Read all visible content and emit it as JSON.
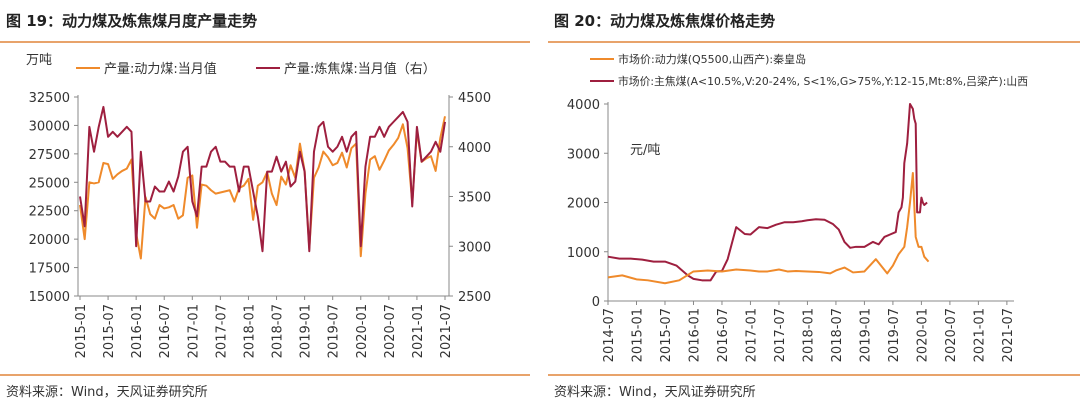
{
  "charts": [
    {
      "title": "图 19：动力煤及炼焦煤月度产量走势",
      "source": "资料来源：Wind，天风证券研究所",
      "unit_label": "万吨",
      "legend": [
        "产量:动力煤:当月值",
        "产量:炼焦煤:当月值（右）"
      ],
      "colors": [
        "#ef8a2b",
        "#9e1f3f"
      ]
    },
    {
      "title": "图 20：动力煤及炼焦煤价格走势",
      "source": "资料来源：Wind，天风证券研究所",
      "unit_label": "元/吨",
      "legend": [
        "市场价:动力煤(Q5500,山西产):秦皇岛",
        "市场价:主焦煤(A<10.5%,V:20-24%, S<1%,G>75%,Y:12-15,Mt:8%,吕梁产):山西"
      ],
      "colors": [
        "#ef8a2b",
        "#9e1f3f"
      ]
    }
  ],
  "chart_data": [
    {
      "type": "line",
      "title": "图 19：动力煤及炼焦煤月度产量走势",
      "ylabel": "万吨",
      "x_ticks": [
        "2015-01",
        "2015-07",
        "2016-01",
        "2016-07",
        "2017-01",
        "2017-07",
        "2018-01",
        "2018-07",
        "2019-01",
        "2019-07",
        "2020-01",
        "2020-07",
        "2021-01",
        "2021-07"
      ],
      "ylim_left": [
        15000,
        32500
      ],
      "yticks_left": [
        "32500",
        "30000",
        "27500",
        "25000",
        "22500",
        "20000",
        "17500",
        "15000"
      ],
      "ylim_right": [
        2500,
        4500
      ],
      "yticks_right": [
        "4500",
        "4000",
        "3500",
        "3000",
        "2500"
      ],
      "series": [
        {
          "name": "产量:动力煤:当月值",
          "axis": "left",
          "values": [
            23000,
            20000,
            25000,
            24900,
            25000,
            26700,
            26600,
            25300,
            25700,
            26000,
            26200,
            27000,
            20500,
            18300,
            23700,
            22200,
            21800,
            23000,
            22700,
            22800,
            23000,
            21800,
            22100,
            25400,
            25600,
            21000,
            24800,
            24700,
            24300,
            24000,
            24100,
            24200,
            24300,
            23300,
            24500,
            24700,
            25300,
            21700,
            24700,
            25000,
            25900,
            24000,
            23000,
            25500,
            24800,
            26500,
            25400,
            28400,
            26000,
            19200,
            25400,
            26300,
            27700,
            27200,
            26500,
            26700,
            27600,
            26300,
            28000,
            28400,
            18500,
            24000,
            27000,
            27300,
            26100,
            26900,
            27800,
            28300,
            28900,
            30100,
            28000,
            23200,
            29500,
            26800,
            27100,
            27300,
            26000,
            28900,
            30800
          ]
        },
        {
          "name": "产量:炼焦煤:当月值（右）",
          "axis": "right",
          "values": [
            3500,
            3200,
            4200,
            3950,
            4200,
            4400,
            4100,
            4150,
            4100,
            4150,
            4200,
            4150,
            3000,
            3950,
            3450,
            3450,
            3600,
            3550,
            3550,
            3650,
            3550,
            3700,
            3950,
            4000,
            3450,
            3300,
            3800,
            3800,
            3950,
            4000,
            3850,
            3850,
            3800,
            3800,
            3550,
            3800,
            3800,
            3550,
            3300,
            2950,
            3750,
            3750,
            3900,
            3750,
            3850,
            3600,
            3650,
            3950,
            3750,
            2950,
            3950,
            4200,
            4250,
            4000,
            3950,
            4000,
            4100,
            3950,
            4100,
            4150,
            3000,
            3800,
            4100,
            4100,
            4200,
            4100,
            4200,
            4250,
            4300,
            4350,
            4250,
            3400,
            4200,
            3850,
            3900,
            3950,
            4050,
            3950,
            4250
          ]
        }
      ]
    },
    {
      "type": "line",
      "title": "图 20：动力煤及炼焦煤价格走势",
      "ylabel": "元/吨",
      "x_ticks": [
        "2014-07",
        "2015-01",
        "2015-07",
        "2016-01",
        "2016-07",
        "2017-01",
        "2017-07",
        "2018-01",
        "2018-07",
        "2019-01",
        "2019-07",
        "2020-01",
        "2020-07",
        "2021-01",
        "2021-07"
      ],
      "ylim": [
        0,
        4000
      ],
      "yticks": [
        "4000",
        "3000",
        "2000",
        "1000",
        "0"
      ],
      "series": [
        {
          "name": "市场价:动力煤(Q5500,山西产):秦皇岛",
          "x": [
            0,
            0.5,
            1,
            1.4,
            2,
            2.5,
            3,
            3.5,
            4,
            4.5,
            5,
            5.3,
            5.6,
            6,
            6.3,
            6.6,
            7,
            7.4,
            7.8,
            8,
            8.3,
            8.6,
            9,
            9.4,
            9.8,
            10,
            10.2,
            10.4,
            10.5,
            10.6,
            10.7,
            10.8,
            10.85,
            10.9,
            10.95,
            11,
            11.05,
            11.1,
            11.25
          ],
          "values": [
            480,
            520,
            440,
            420,
            360,
            420,
            600,
            620,
            600,
            640,
            620,
            600,
            600,
            640,
            600,
            610,
            600,
            590,
            560,
            620,
            680,
            580,
            600,
            850,
            560,
            720,
            950,
            1100,
            1500,
            2000,
            2600,
            1300,
            1200,
            1100,
            1100,
            1100,
            1000,
            900,
            800
          ]
        },
        {
          "name": "市场价:主焦煤(A<10.5%,V:20-24%, S<1%,G>75%,Y:12-15,Mt:8%,吕梁产):山西",
          "x": [
            0,
            0.4,
            0.8,
            1.2,
            1.6,
            2,
            2.4,
            2.8,
            3,
            3.3,
            3.6,
            3.8,
            4,
            4.2,
            4.5,
            4.8,
            5,
            5.3,
            5.6,
            5.9,
            6.2,
            6.5,
            6.8,
            7,
            7.3,
            7.6,
            7.9,
            8.1,
            8.3,
            8.5,
            8.7,
            9,
            9.3,
            9.5,
            9.7,
            9.9,
            10.1,
            10.2,
            10.3,
            10.35,
            10.4,
            10.5,
            10.6,
            10.7,
            10.75,
            10.8,
            10.85,
            10.9,
            10.95,
            11,
            11.05,
            11.1,
            11.2
          ],
          "values": [
            900,
            860,
            860,
            840,
            800,
            800,
            720,
            520,
            450,
            420,
            420,
            600,
            610,
            850,
            1500,
            1360,
            1350,
            1500,
            1480,
            1550,
            1600,
            1600,
            1620,
            1640,
            1660,
            1650,
            1560,
            1450,
            1200,
            1080,
            1100,
            1100,
            1200,
            1150,
            1300,
            1350,
            1400,
            1800,
            1900,
            2100,
            2800,
            3200,
            4000,
            3900,
            3700,
            3600,
            1800,
            1800,
            1800,
            2100,
            2000,
            1950,
            2000
          ]
        }
      ]
    }
  ]
}
